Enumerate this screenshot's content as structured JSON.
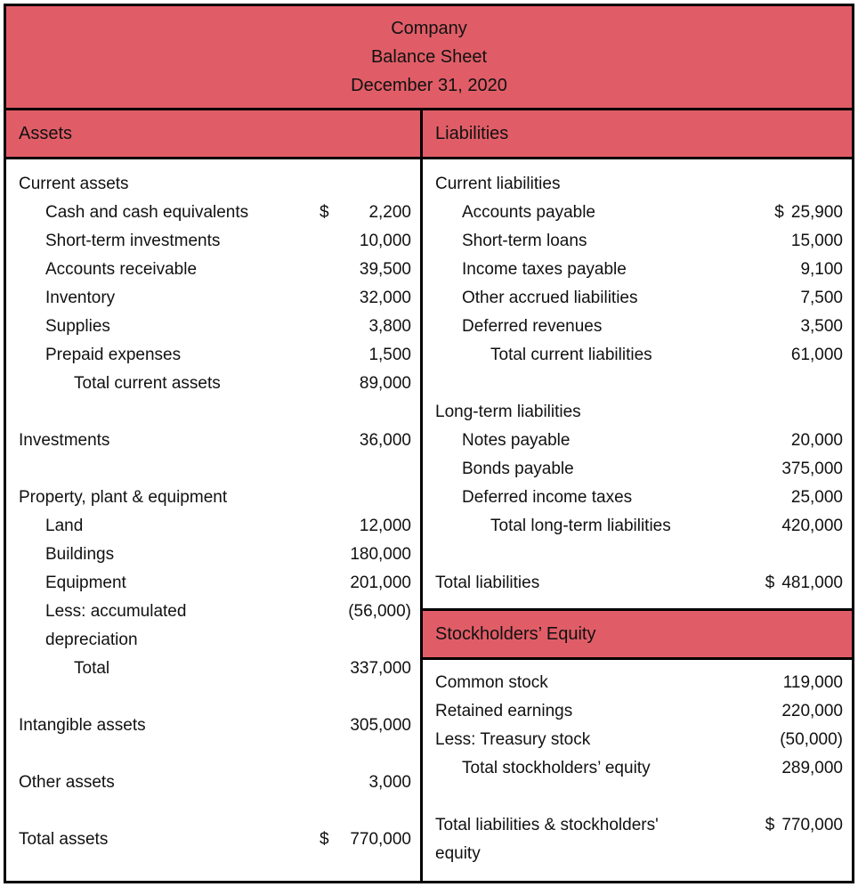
{
  "colors": {
    "banner_red": "#E05D67",
    "border": "#000000",
    "text": "#111111"
  },
  "header": {
    "title_lines": [
      "Company",
      "Balance Sheet",
      "December 31, 2020"
    ]
  },
  "columns": {
    "assets": {
      "header": "Assets",
      "rows": [
        {
          "label": "Current assets",
          "indent": 0
        },
        {
          "label": "Cash and cash equivalents",
          "indent": 1,
          "currency": "$",
          "amount": "2,200"
        },
        {
          "label": "Short-term investments",
          "indent": 1,
          "amount": "10,000"
        },
        {
          "label": "Accounts receivable",
          "indent": 1,
          "amount": "39,500"
        },
        {
          "label": "Inventory",
          "indent": 1,
          "amount": "32,000"
        },
        {
          "label": "Supplies",
          "indent": 1,
          "amount": "3,800"
        },
        {
          "label": "Prepaid expenses",
          "indent": 1,
          "amount": "1,500"
        },
        {
          "label": "Total current assets",
          "indent": 2,
          "amount": "89,000"
        },
        {
          "type": "spacer"
        },
        {
          "label": "Investments",
          "indent": 0,
          "amount": "36,000"
        },
        {
          "type": "spacer"
        },
        {
          "label": "Property, plant & equipment",
          "indent": 0
        },
        {
          "label": "Land",
          "indent": 1,
          "amount": "12,000"
        },
        {
          "label": "Buildings",
          "indent": 1,
          "amount": "180,000"
        },
        {
          "label": "Equipment",
          "indent": 1,
          "amount": "201,000"
        },
        {
          "label": "Less: accumulated\ndepreciation",
          "indent": 1,
          "amount": "(56,000)"
        },
        {
          "label": "Total",
          "indent": 2,
          "amount": "337,000"
        },
        {
          "type": "spacer"
        },
        {
          "label": "Intangible assets",
          "indent": 0,
          "amount": "305,000"
        },
        {
          "type": "spacer"
        },
        {
          "label": "Other assets",
          "indent": 0,
          "amount": "3,000"
        },
        {
          "type": "spacer"
        },
        {
          "label": "Total assets",
          "indent": 0,
          "currency": "$",
          "amount": "770,000"
        }
      ]
    },
    "liabilities": {
      "header": "Liabilities",
      "rows": [
        {
          "label": "Current liabilities",
          "indent": 0
        },
        {
          "label": "Accounts payable",
          "indent": 1,
          "currency": "$",
          "amount": "25,900"
        },
        {
          "label": "Short-term loans",
          "indent": 1,
          "amount": "15,000"
        },
        {
          "label": "Income taxes payable",
          "indent": 1,
          "amount": "9,100"
        },
        {
          "label": "Other accrued liabilities",
          "indent": 1,
          "amount": "7,500"
        },
        {
          "label": "Deferred revenues",
          "indent": 1,
          "amount": "3,500"
        },
        {
          "label": "Total current liabilities",
          "indent": 2,
          "amount": "61,000"
        },
        {
          "type": "spacer"
        },
        {
          "label": "Long-term liabilities",
          "indent": 0
        },
        {
          "label": "Notes payable",
          "indent": 1,
          "amount": "20,000"
        },
        {
          "label": "Bonds payable",
          "indent": 1,
          "amount": "375,000"
        },
        {
          "label": "Deferred income taxes",
          "indent": 1,
          "amount": "25,000"
        },
        {
          "label": "Total long-term liabilities",
          "indent": 2,
          "amount": "420,000"
        },
        {
          "type": "spacer"
        },
        {
          "label": "Total liabilities",
          "indent": 0,
          "currency": "$",
          "amount": "481,000"
        },
        {
          "type": "banner",
          "label": "Stockholders’ Equity"
        },
        {
          "label": "Common stock",
          "indent": 0,
          "amount": "119,000"
        },
        {
          "label": "Retained earnings",
          "indent": 0,
          "amount": "220,000"
        },
        {
          "label": "Less: Treasury stock",
          "indent": 0,
          "amount": "(50,000)"
        },
        {
          "label": "Total stockholders’ equity",
          "indent": 1,
          "amount": "289,000"
        },
        {
          "type": "spacer"
        },
        {
          "label": "Total liabilities & stockholders'\nequity",
          "indent": 0,
          "currency": "$",
          "amount": "770,000"
        }
      ]
    }
  }
}
